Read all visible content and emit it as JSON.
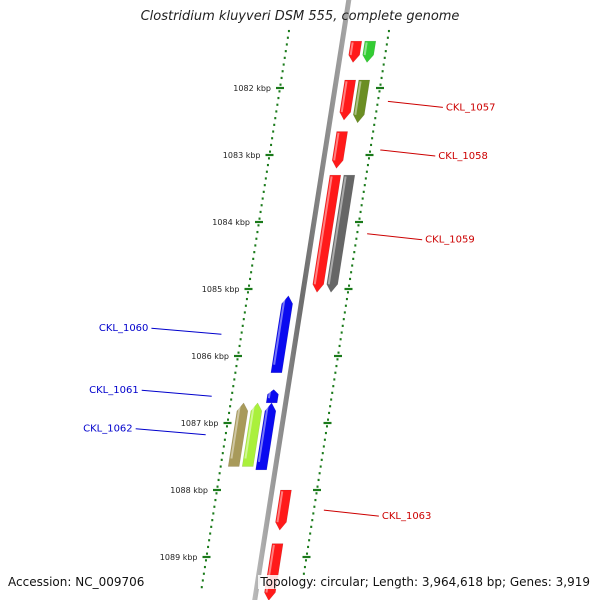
{
  "title": "Clostridium kluyveri DSM 555, complete genome",
  "footer": {
    "accession": "Accession: NC_009706",
    "summary": "Topology: circular; Length: 3,964,618 bp; Genes: 3,919"
  },
  "colors": {
    "forward_label": "#cc0000",
    "reverse_label": "#0000cc",
    "tick": "#1a7a1a",
    "backbone": "#7a7a7a"
  },
  "ruler": [
    {
      "label": "1082 kbp",
      "kbp": 1082
    },
    {
      "label": "1083 kbp",
      "kbp": 1083
    },
    {
      "label": "1084 kbp",
      "kbp": 1084
    },
    {
      "label": "1085 kbp",
      "kbp": 1085
    },
    {
      "label": "1086 kbp",
      "kbp": 1086
    },
    {
      "label": "1087 kbp",
      "kbp": 1087
    },
    {
      "label": "1088 kbp",
      "kbp": 1088
    },
    {
      "label": "1089 kbp",
      "kbp": 1089
    }
  ],
  "genes": [
    {
      "id": "top-red",
      "label": "",
      "start_kbp": 1081.3,
      "end_kbp": 1081.62,
      "strand": "+",
      "track": 1,
      "color": "#ff1a1a"
    },
    {
      "id": "top-green",
      "label": "",
      "start_kbp": 1081.3,
      "end_kbp": 1081.62,
      "strand": "+",
      "track": 2,
      "color": "#33cc33"
    },
    {
      "id": "ckl1057-red",
      "label": "",
      "start_kbp": 1081.88,
      "end_kbp": 1082.48,
      "strand": "+",
      "track": 1,
      "color": "#ff1a1a"
    },
    {
      "id": "ckl1057-olive",
      "label": "CKL_1057",
      "start_kbp": 1081.88,
      "end_kbp": 1082.52,
      "strand": "+",
      "track": 2,
      "color": "#6b8e23"
    },
    {
      "id": "ckl1058",
      "label": "CKL_1058",
      "start_kbp": 1082.65,
      "end_kbp": 1083.2,
      "strand": "+",
      "track": 1,
      "color": "#ff1a1a"
    },
    {
      "id": "ckl1059-red",
      "label": "",
      "start_kbp": 1083.3,
      "end_kbp": 1085.05,
      "strand": "+",
      "track": 1,
      "color": "#ff1a1a"
    },
    {
      "id": "ckl1059-grey",
      "label": "CKL_1059",
      "start_kbp": 1083.3,
      "end_kbp": 1085.05,
      "strand": "+",
      "track": 2,
      "color": "#666666"
    },
    {
      "id": "ckl1060",
      "label": "CKL_1060",
      "start_kbp": 1085.1,
      "end_kbp": 1086.25,
      "strand": "-",
      "track": -1,
      "color": "#0a0af0"
    },
    {
      "id": "ckl1061",
      "label": "CKL_1061",
      "start_kbp": 1086.5,
      "end_kbp": 1086.7,
      "strand": "-",
      "track": -1,
      "color": "#0a0af0"
    },
    {
      "id": "ckl1062-blue",
      "label": "",
      "start_kbp": 1086.7,
      "end_kbp": 1087.7,
      "strand": "-",
      "track": -1,
      "color": "#0a0af0"
    },
    {
      "id": "ckl1062-green",
      "label": "CKL_1062",
      "start_kbp": 1086.7,
      "end_kbp": 1087.65,
      "strand": "-",
      "track": -2,
      "color": "#aaf03c"
    },
    {
      "id": "ckl1062-khaki",
      "label": "",
      "start_kbp": 1086.7,
      "end_kbp": 1087.65,
      "strand": "-",
      "track": -3,
      "color": "#a89a5a"
    },
    {
      "id": "ckl1063",
      "label": "CKL_1063",
      "start_kbp": 1088.0,
      "end_kbp": 1088.6,
      "strand": "+",
      "track": 1,
      "color": "#ff1a1a"
    },
    {
      "id": "bottom-red",
      "label": "",
      "start_kbp": 1088.8,
      "end_kbp": 1089.65,
      "strand": "+",
      "track": 1,
      "color": "#ff1a1a"
    }
  ]
}
